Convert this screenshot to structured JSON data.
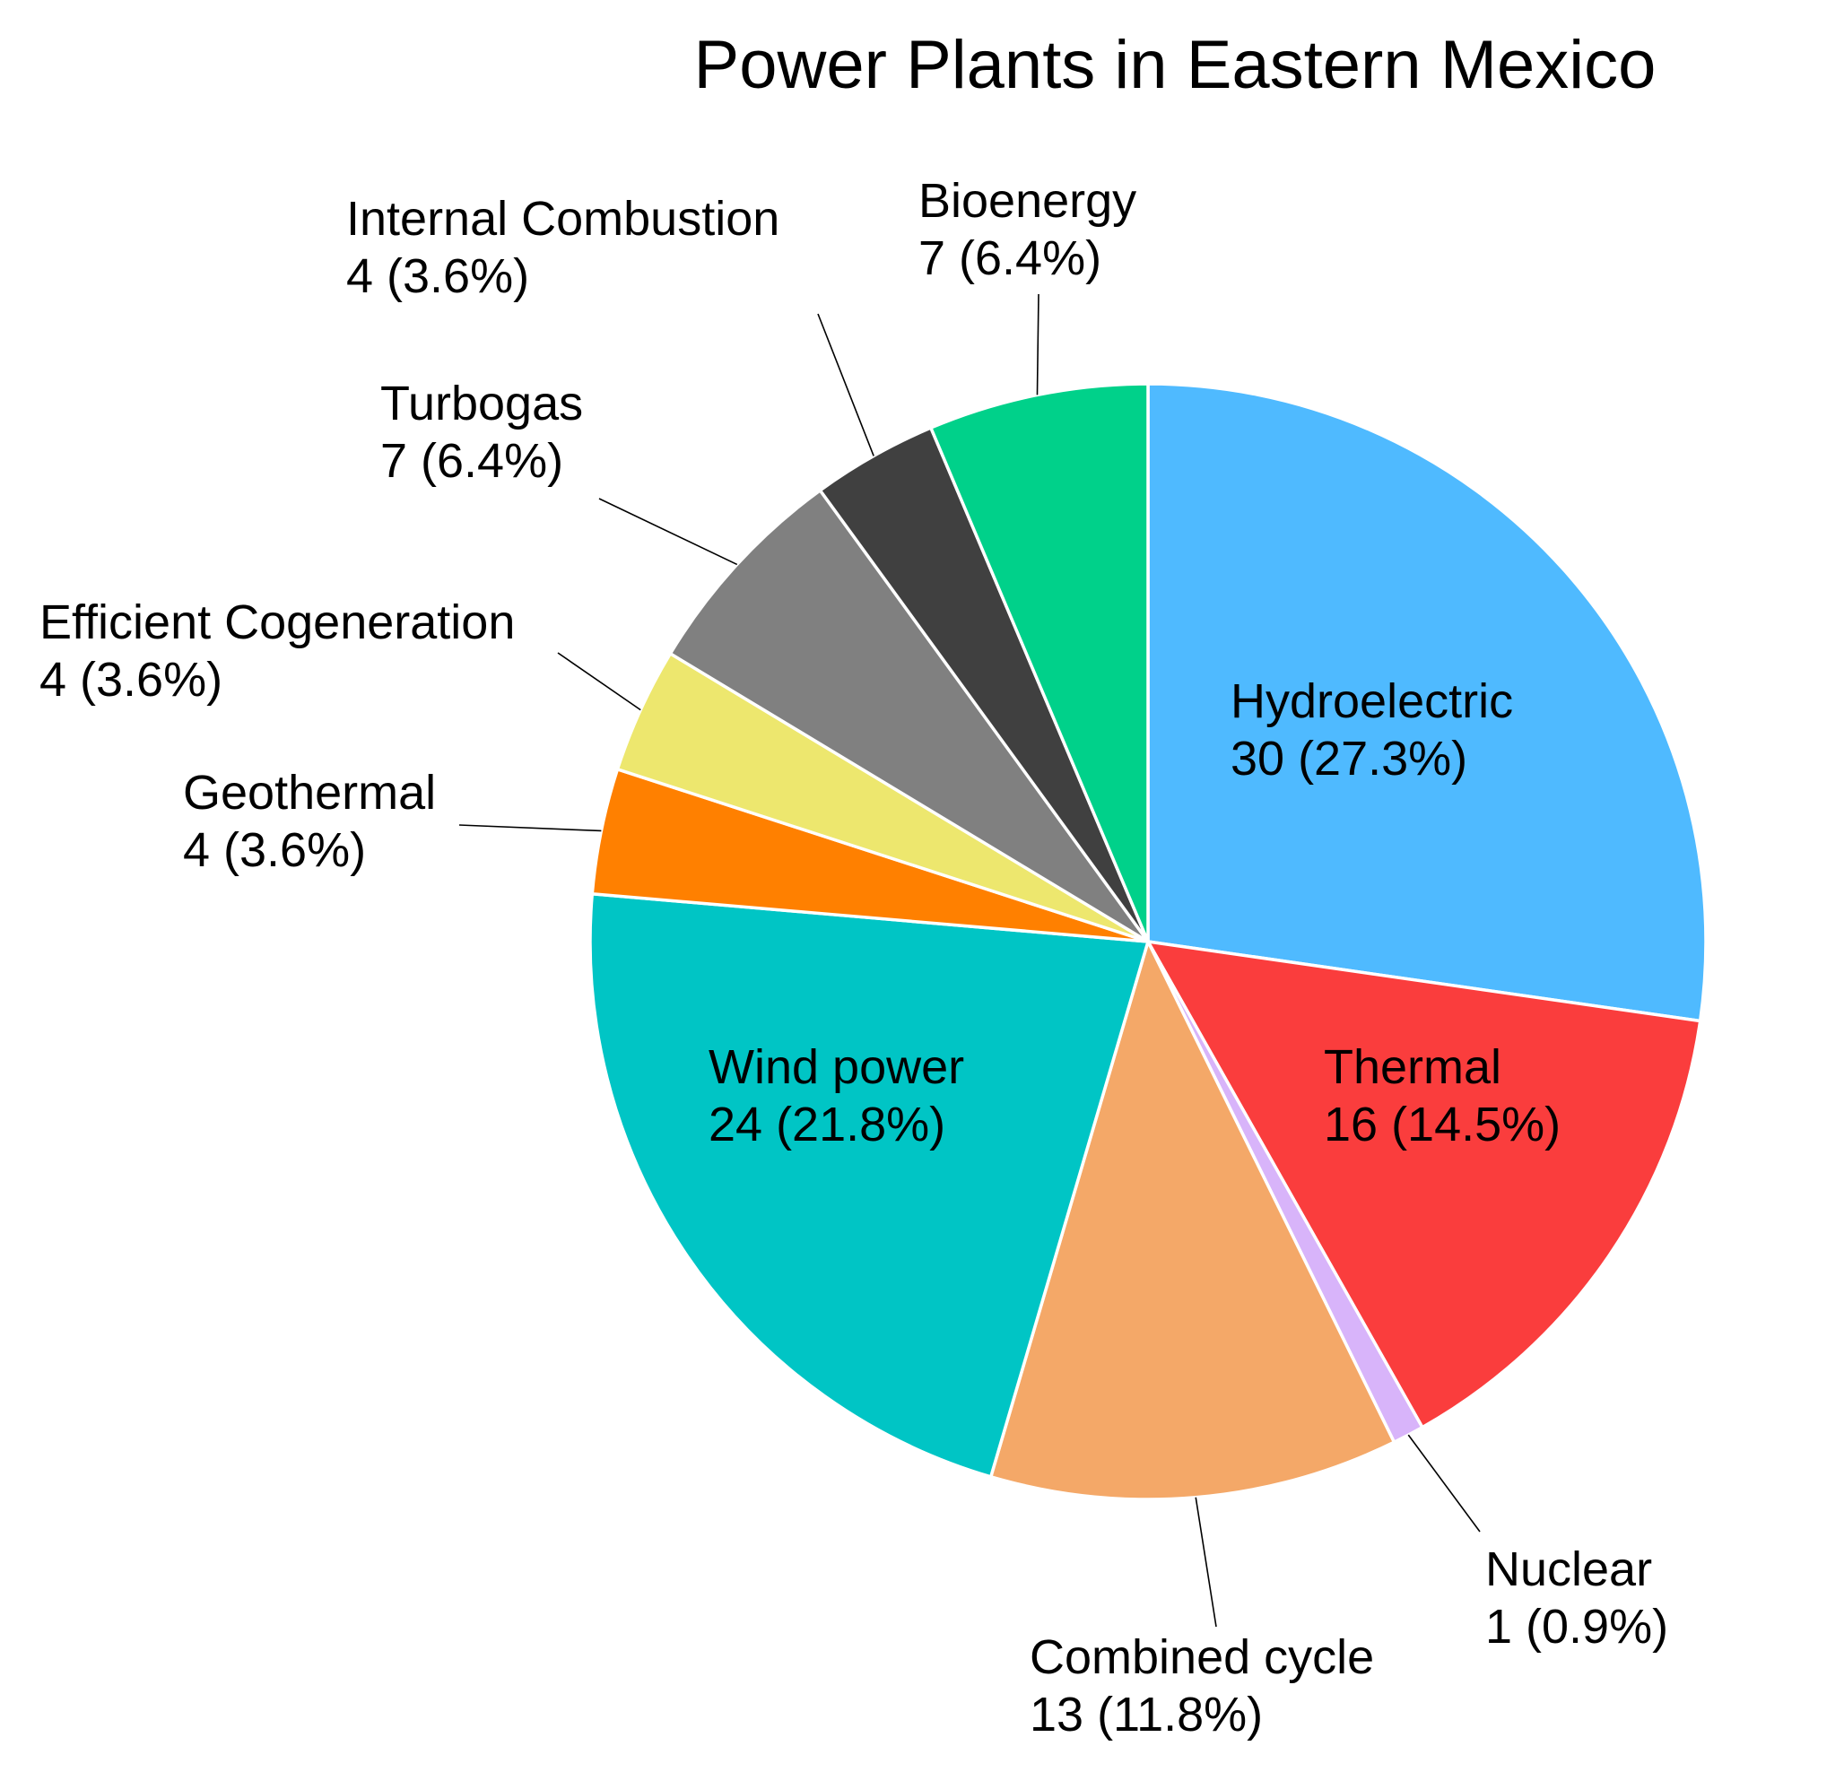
{
  "chart_data": {
    "type": "pie",
    "title": "Power Plants in Eastern Mexico",
    "start_angle_deg": 90,
    "direction": "clockwise",
    "slices": [
      {
        "label": "Hydroelectric",
        "value": 30,
        "display": "30 (27.3%)",
        "color": "#4fbaff",
        "label_position": "inside"
      },
      {
        "label": "Thermal",
        "value": 16,
        "display": "16 (14.5%)",
        "color": "#fa3d3d",
        "label_position": "inside"
      },
      {
        "label": "Nuclear",
        "value": 1,
        "display": "1 (0.9%)",
        "color": "#d8b4fa",
        "label_position": "outside"
      },
      {
        "label": "Combined cycle",
        "value": 13,
        "display": "13 (11.8%)",
        "color": "#f4a868",
        "label_position": "outside"
      },
      {
        "label": "Wind power",
        "value": 24,
        "display": "24 (21.8%)",
        "color": "#00c5c5",
        "label_position": "inside"
      },
      {
        "label": "Geothermal",
        "value": 4,
        "display": "4 (3.6%)",
        "color": "#ff8000",
        "label_position": "outside"
      },
      {
        "label": "Efficient Cogeneration",
        "value": 4,
        "display": "4 (3.6%)",
        "color": "#ede76e",
        "label_position": "outside"
      },
      {
        "label": "Turbogas",
        "value": 7,
        "display": "7 (6.4%)",
        "color": "#808080",
        "label_position": "outside"
      },
      {
        "label": "Internal Combustion",
        "value": 4,
        "display": "4 (3.6%)",
        "color": "#404040",
        "label_position": "outside"
      },
      {
        "label": "Bioenergy",
        "value": 7,
        "display": "7 (6.4%)",
        "color": "#00d18a",
        "label_position": "outside"
      }
    ]
  }
}
